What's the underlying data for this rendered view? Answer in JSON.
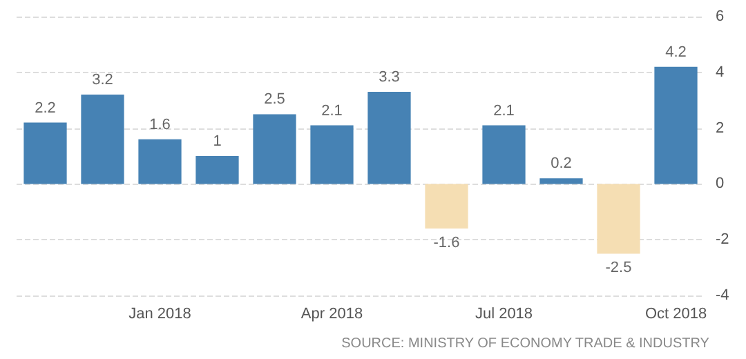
{
  "chart_data": {
    "type": "bar",
    "categories": [
      null,
      null,
      "Jan 2018",
      null,
      null,
      "Apr 2018",
      null,
      null,
      "Jul 2018",
      null,
      null,
      "Oct 2018"
    ],
    "values": [
      2.2,
      3.2,
      1.6,
      1,
      2.5,
      2.1,
      3.3,
      -1.6,
      2.1,
      0.2,
      -2.5,
      4.2
    ],
    "colors": [
      "#4682b4",
      "#4682b4",
      "#4682b4",
      "#4682b4",
      "#4682b4",
      "#4682b4",
      "#4682b4",
      "#f5deb3",
      "#4682b4",
      "#4682b4",
      "#f5deb3",
      "#4682b4"
    ],
    "ylim": [
      -4,
      6
    ],
    "yticks": [
      -4,
      -2,
      0,
      2,
      4,
      6
    ],
    "grid": "y",
    "data_labels": true,
    "annotations": [
      "SOURCE: MINISTRY OF ECONOMY TRADE & INDUSTRY"
    ]
  }
}
